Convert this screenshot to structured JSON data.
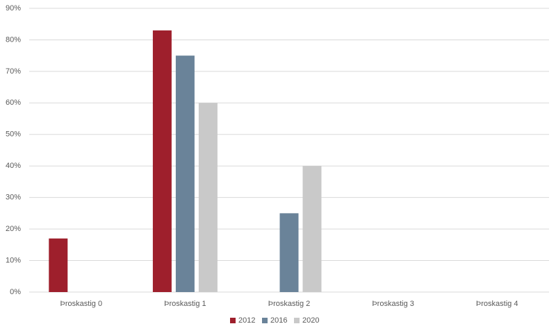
{
  "chart_data": {
    "type": "bar",
    "categories": [
      "Þroskastig 0",
      "Þroskastig 1",
      "Þroskastig 2",
      "Þroskastig 3",
      "Þroskastig 4"
    ],
    "series": [
      {
        "name": "2012",
        "color": "#9e1f2c",
        "values": [
          17,
          83,
          0,
          0,
          0
        ]
      },
      {
        "name": "2016",
        "color": "#6a8399",
        "values": [
          0,
          75,
          25,
          0,
          0
        ]
      },
      {
        "name": "2020",
        "color": "#c9c9c9",
        "values": [
          0,
          60,
          40,
          0,
          0
        ]
      }
    ],
    "ylim": [
      0,
      90
    ],
    "yticks": [
      {
        "value": 0,
        "label": "0%"
      },
      {
        "value": 10,
        "label": "10%"
      },
      {
        "value": 20,
        "label": "20%"
      },
      {
        "value": 30,
        "label": "30%"
      },
      {
        "value": 40,
        "label": "40%"
      },
      {
        "value": 50,
        "label": "50%"
      },
      {
        "value": 60,
        "label": "60%"
      },
      {
        "value": 70,
        "label": "70%"
      },
      {
        "value": 80,
        "label": "80%"
      },
      {
        "value": 90,
        "label": "90%"
      }
    ],
    "grid": true,
    "legend": "bottom"
  }
}
